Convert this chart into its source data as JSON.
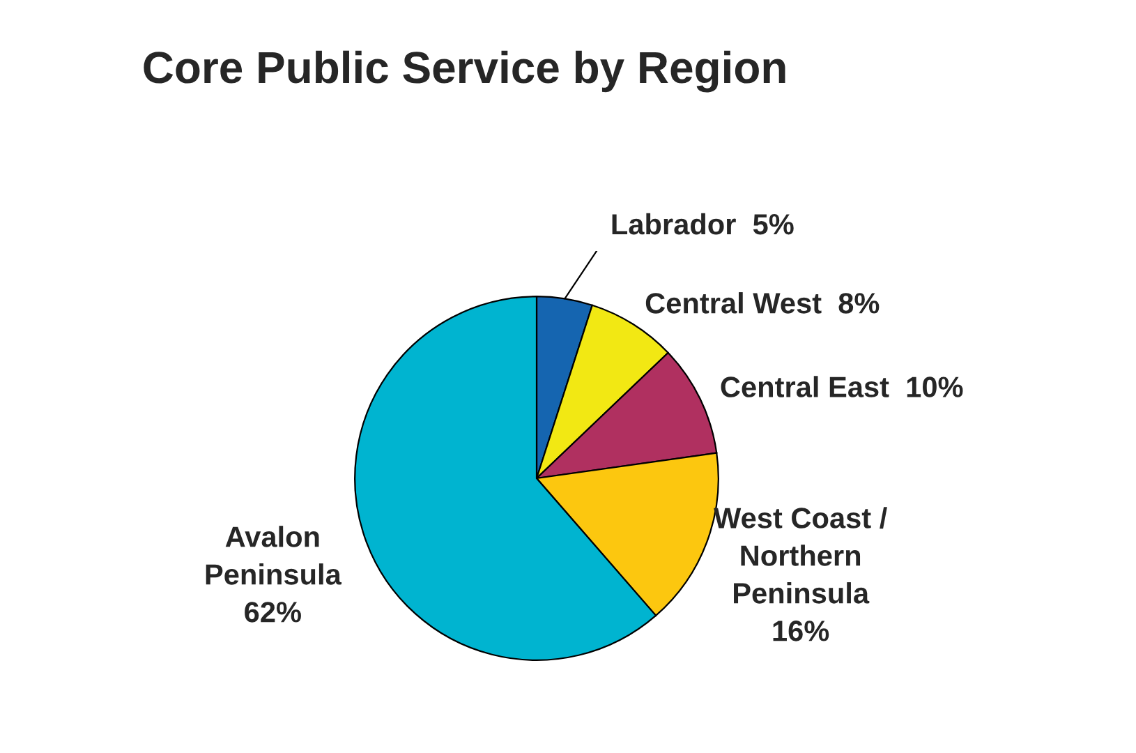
{
  "chart_data": {
    "type": "pie",
    "title": "Core Public Service by Region",
    "categories": [
      "Labrador",
      "Central West",
      "Central East",
      "West Coast /\nNorthern\nPeninsula",
      "Avalon\nPeninsula"
    ],
    "values": [
      5,
      8,
      10,
      16,
      62
    ],
    "value_labels": [
      "5%",
      "8%",
      "10%",
      "16%",
      "62%"
    ],
    "colors": [
      "#1565b0",
      "#f2e813",
      "#b03060",
      "#fcc70f",
      "#00b4d0"
    ]
  }
}
